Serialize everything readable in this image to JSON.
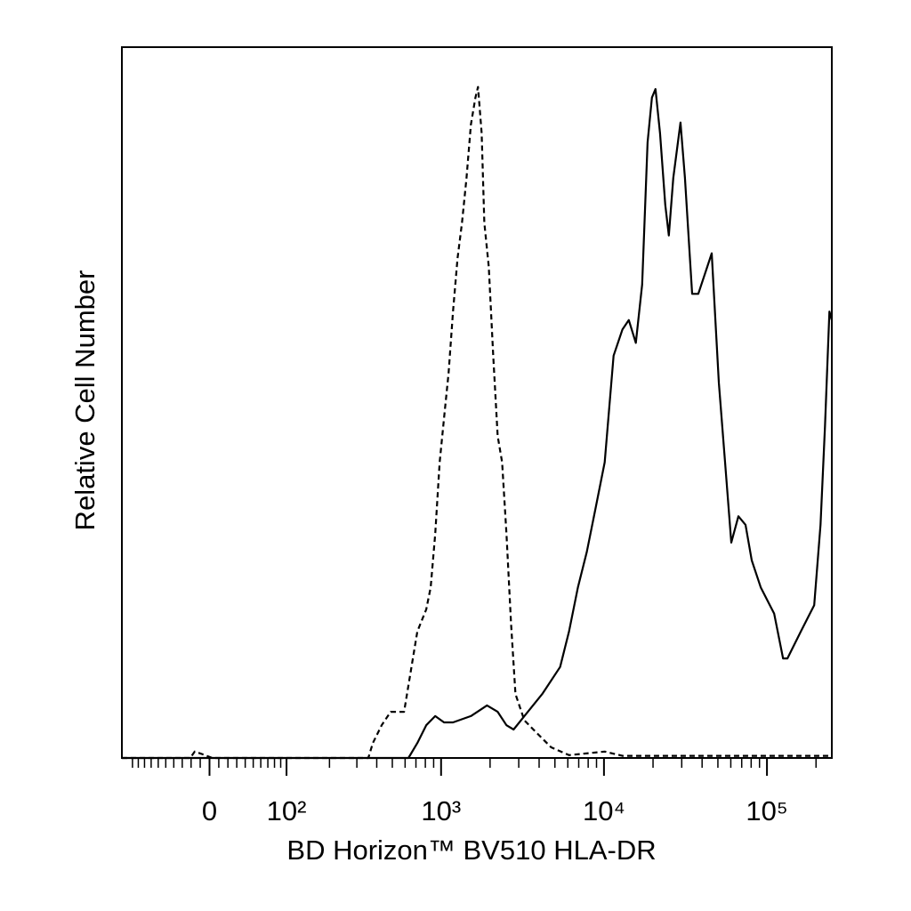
{
  "chart_data": {
    "type": "line",
    "xlabel": "BD Horizon™ BV510 HLA-DR",
    "ylabel": "Relative Cell Number",
    "xscale": "biexponential",
    "xlim": [
      -120,
      250000
    ],
    "ylim": [
      0,
      100
    ],
    "xticks": [
      0,
      {
        "value": 100,
        "label": "10²"
      },
      {
        "value": 1000,
        "label": "10³"
      },
      {
        "value": 10000,
        "label": "10⁴"
      },
      {
        "value": 100000,
        "label": "10⁵"
      }
    ],
    "xminorticks": [
      -100,
      -90,
      -80,
      -70,
      -60,
      -50,
      -40,
      -30,
      -20,
      -10,
      10,
      20,
      30,
      40,
      50,
      60,
      70,
      80,
      90,
      200,
      300,
      400,
      500,
      600,
      700,
      800,
      900,
      2000,
      3000,
      4000,
      5000,
      6000,
      7000,
      8000,
      9000,
      20000,
      30000,
      40000,
      50000,
      60000,
      70000,
      80000,
      90000,
      200000
    ],
    "series": [
      {
        "color": "#000000",
        "dashed": true,
        "x": [
          -120,
          -21,
          -16,
          -7,
          3,
          354,
          378,
          429,
          488,
          591,
          670,
          714,
          810,
          863,
          920,
          980,
          1043,
          1112,
          1184,
          1262,
          1344,
          1432,
          1524,
          1626,
          1687,
          1775,
          1843,
          1964,
          2090,
          2227,
          2371,
          2523,
          2690,
          2865,
          3249,
          3686,
          4742,
          6103,
          10108,
          12996,
          250000
        ],
        "values": [
          0,
          0,
          0.9,
          0.5,
          0,
          0,
          2.1,
          4.6,
          6.5,
          6.5,
          14.0,
          17.8,
          20.9,
          24.0,
          31.5,
          41.6,
          47.8,
          54.1,
          62.8,
          70.3,
          75.3,
          81.5,
          89.1,
          92.9,
          94.4,
          87.9,
          75.3,
          69.1,
          56.6,
          45.3,
          41.6,
          31.5,
          19.0,
          9.0,
          5.3,
          4.0,
          1.5,
          0.4,
          0.9,
          0.3,
          0.3
        ]
      },
      {
        "color": "#000000",
        "dashed": false,
        "x": [
          -120,
          629,
          714,
          810,
          920,
          1043,
          1184,
          1524,
          1915,
          2227,
          2523,
          2789,
          3249,
          4180,
          5381,
          6103,
          6924,
          7851,
          8907,
          10108,
          11461,
          12996,
          14197,
          15694,
          17138,
          18506,
          19684,
          20710,
          22078,
          23788,
          25004,
          26638,
          29488,
          31388,
          34732,
          37924,
          43016,
          45828,
          50654,
          55328,
          60420,
          66842,
          73910,
          80712,
          91580,
          110656,
          125476,
          133608,
          161348,
          194940,
          213104,
          226936,
          241680,
          250000
        ],
        "values": [
          0,
          0,
          2.1,
          4.6,
          5.9,
          5.0,
          5.0,
          5.9,
          7.4,
          6.5,
          4.6,
          4.0,
          5.9,
          9.0,
          12.8,
          17.8,
          24.0,
          29.0,
          35.3,
          41.6,
          56.6,
          60.3,
          61.6,
          58.4,
          66.6,
          86.6,
          92.9,
          94.1,
          87.9,
          77.8,
          73.5,
          81.6,
          89.4,
          81.6,
          65.3,
          65.3,
          69.1,
          71.0,
          52.8,
          41.6,
          30.3,
          34.0,
          32.8,
          27.8,
          24.0,
          20.3,
          14.0,
          14.0,
          17.8,
          21.5,
          32.8,
          46.6,
          62.8,
          61.6
        ]
      }
    ]
  }
}
